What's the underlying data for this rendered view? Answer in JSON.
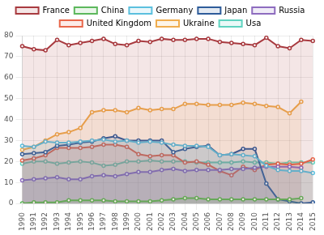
{
  "chart_data": {
    "type": "line",
    "categories": [
      "1990",
      "1991",
      "1992",
      "1993",
      "1994",
      "1995",
      "1996",
      "1997",
      "1998",
      "1999",
      "2000",
      "2001",
      "2002",
      "2003",
      "2004",
      "2005",
      "2006",
      "2007",
      "2008",
      "2009",
      "2010",
      "2011",
      "2012",
      "2013",
      "2014",
      "2015"
    ],
    "series": [
      {
        "name": "France",
        "color": "#a83a3f",
        "values": [
          75,
          73.5,
          73,
          78,
          75.5,
          76.5,
          77.5,
          78.5,
          76,
          75.5,
          77.5,
          77,
          78.5,
          78,
          78,
          78.5,
          78.5,
          77,
          76.5,
          76,
          75.5,
          79,
          75,
          74,
          78,
          77.5
        ]
      },
      {
        "name": "China",
        "color": "#5cb85c",
        "values": [
          0,
          0.5,
          0.5,
          0.5,
          1.5,
          1.5,
          1.5,
          1.5,
          1,
          1,
          1,
          1,
          1.5,
          2,
          2.5,
          2.5,
          2,
          2,
          2,
          2,
          2,
          2,
          2,
          2,
          2.5,
          null
        ]
      },
      {
        "name": "Germany",
        "color": "#5bc0de",
        "values": [
          27.5,
          27,
          29.5,
          29,
          29,
          29.5,
          30,
          30.5,
          29.5,
          30,
          29,
          29.5,
          29,
          28,
          27.5,
          27.5,
          27,
          23,
          23.5,
          23,
          22.5,
          18,
          16,
          15.5,
          15.5,
          14.5
        ]
      },
      {
        "name": "Japan",
        "color": "#2e5c9a",
        "values": [
          23.5,
          24,
          24.5,
          27.5,
          28,
          29,
          29.5,
          31,
          32,
          30,
          30,
          30,
          30,
          24.5,
          26,
          27,
          27.5,
          23,
          23.5,
          26,
          26,
          9.5,
          2,
          1,
          0,
          0.5
        ]
      },
      {
        "name": "Russia",
        "color": "#8e6cbf",
        "values": [
          11,
          11.5,
          12,
          12.5,
          11.5,
          11.5,
          13,
          13.5,
          13,
          14,
          15,
          15,
          16,
          16.5,
          15.5,
          16,
          16,
          16,
          16.5,
          16.5,
          17,
          17.5,
          17.5,
          17.5,
          17,
          null
        ]
      },
      {
        "name": "United Kingdom",
        "color": "#e8674a",
        "values": [
          20.5,
          21.5,
          23,
          26.5,
          26.5,
          26.5,
          27,
          28,
          28,
          27,
          23.5,
          22.5,
          23,
          23,
          19.5,
          20,
          18.5,
          15.5,
          13.5,
          17.5,
          16,
          18.5,
          19,
          18.5,
          19,
          21
        ]
      },
      {
        "name": "Ukraine",
        "color": "#f0ad4e",
        "values": [
          25.5,
          27,
          30,
          33,
          34,
          36,
          43.5,
          44.5,
          44.5,
          43.5,
          45.5,
          44.5,
          45,
          45,
          47.5,
          47.5,
          47,
          47,
          47,
          48,
          47.5,
          46.5,
          46,
          43,
          48.5,
          null
        ]
      },
      {
        "name": "Usa",
        "color": "#5fd3c0",
        "values": [
          19,
          20,
          20,
          19,
          19.5,
          20,
          19.5,
          18,
          18.5,
          20,
          20,
          20.5,
          20,
          20,
          20,
          19.5,
          19.5,
          19.5,
          19.5,
          20,
          19.5,
          19.5,
          19,
          19.5,
          19.5,
          19.5
        ]
      }
    ],
    "ylim": [
      0,
      80
    ],
    "yticks": [
      0,
      10,
      20,
      30,
      40,
      50,
      60,
      70,
      80
    ],
    "grid": true,
    "legend": "top",
    "marker": "circle"
  }
}
